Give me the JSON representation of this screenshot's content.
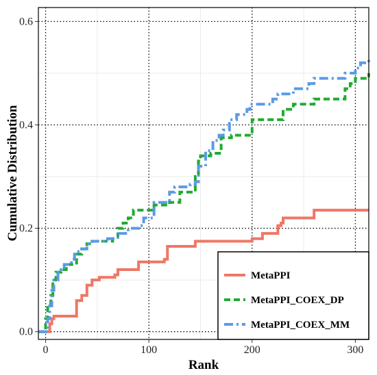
{
  "chart_data": {
    "type": "line",
    "title": "",
    "xlabel": "Rank",
    "ylabel": "Cumulative Distribution",
    "xlim": [
      -7,
      313
    ],
    "ylim": [
      -0.015,
      0.627
    ],
    "x_ticks": [
      0,
      100,
      200,
      300
    ],
    "x_tick_labels": [
      "0",
      "100",
      "200",
      "300"
    ],
    "y_ticks": [
      0.0,
      0.2,
      0.4,
      0.6
    ],
    "y_tick_labels": [
      "0.0",
      "0.2",
      "0.4",
      "0.6"
    ],
    "grid": true,
    "step": true,
    "legend_position": "bottom-right",
    "series": [
      {
        "name": "MetaPPI",
        "color": "#EF7766",
        "dash": "solid",
        "x": [
          -7,
          2,
          4,
          6,
          8,
          30,
          35,
          40,
          45,
          50,
          52,
          67,
          70,
          85,
          90,
          105,
          115,
          118,
          145,
          150,
          200,
          205,
          210,
          215,
          225,
          228,
          230,
          245,
          255,
          260,
          313
        ],
        "y": [
          0,
          0,
          0.015,
          0.025,
          0.03,
          0.06,
          0.07,
          0.09,
          0.1,
          0.1,
          0.105,
          0.11,
          0.12,
          0.12,
          0.135,
          0.135,
          0.14,
          0.165,
          0.175,
          0.175,
          0.18,
          0.18,
          0.19,
          0.19,
          0.205,
          0.21,
          0.22,
          0.22,
          0.22,
          0.235,
          0.235
        ]
      },
      {
        "name": "MetaPPI_COEX_DP",
        "color": "#22AA33",
        "dash": "dashed",
        "x": [
          -7,
          0,
          2,
          5,
          7,
          10,
          12,
          15,
          20,
          30,
          35,
          38,
          40,
          45,
          65,
          70,
          75,
          80,
          85,
          95,
          105,
          120,
          130,
          145,
          148,
          150,
          160,
          170,
          180,
          200,
          205,
          230,
          240,
          260,
          290,
          295,
          300,
          313
        ],
        "y": [
          0,
          0.025,
          0.05,
          0.07,
          0.1,
          0.115,
          0.115,
          0.12,
          0.13,
          0.15,
          0.16,
          0.16,
          0.17,
          0.175,
          0.18,
          0.2,
          0.21,
          0.22,
          0.235,
          0.235,
          0.245,
          0.25,
          0.27,
          0.3,
          0.33,
          0.34,
          0.345,
          0.375,
          0.38,
          0.41,
          0.41,
          0.43,
          0.44,
          0.45,
          0.47,
          0.48,
          0.49,
          0.5
        ]
      },
      {
        "name": "MetaPPI_COEX_MM",
        "color": "#5B9AE6",
        "dash": "dashdot",
        "x": [
          -7,
          2,
          4,
          6,
          8,
          12,
          15,
          18,
          25,
          28,
          30,
          35,
          40,
          45,
          60,
          70,
          80,
          90,
          95,
          105,
          120,
          125,
          140,
          145,
          148,
          155,
          162,
          168,
          172,
          178,
          185,
          195,
          198,
          220,
          225,
          240,
          255,
          260,
          285,
          290,
          300,
          305,
          313
        ],
        "y": [
          0,
          0.025,
          0.05,
          0.08,
          0.1,
          0.115,
          0.12,
          0.13,
          0.14,
          0.15,
          0.155,
          0.16,
          0.17,
          0.175,
          0.18,
          0.19,
          0.2,
          0.205,
          0.22,
          0.25,
          0.27,
          0.28,
          0.285,
          0.29,
          0.32,
          0.35,
          0.37,
          0.38,
          0.39,
          0.41,
          0.42,
          0.43,
          0.44,
          0.45,
          0.46,
          0.47,
          0.48,
          0.49,
          0.49,
          0.5,
          0.51,
          0.52,
          0.53
        ]
      }
    ]
  }
}
